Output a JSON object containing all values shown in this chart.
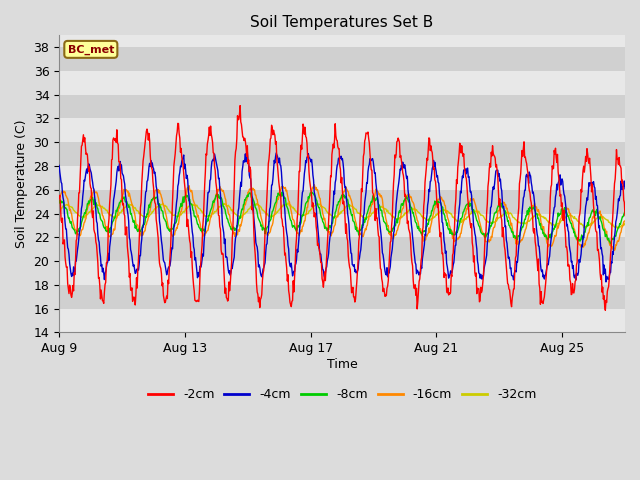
{
  "title": "Soil Temperatures Set B",
  "xlabel": "Time",
  "ylabel": "Soil Temperature (C)",
  "ylim": [
    14,
    39
  ],
  "yticks": [
    14,
    16,
    18,
    20,
    22,
    24,
    26,
    28,
    30,
    32,
    34,
    36,
    38
  ],
  "depths": [
    "-2cm",
    "-4cm",
    "-8cm",
    "-16cm",
    "-32cm"
  ],
  "colors": [
    "#ff0000",
    "#0000cc",
    "#00cc00",
    "#ff8800",
    "#cccc00"
  ],
  "legend_label": "BC_met",
  "bg_color": "#dcdcdc",
  "band_colors": [
    "#e8e8e8",
    "#d0d0d0"
  ],
  "grid_color": "#c8c8c8",
  "lw": 1.0,
  "xtick_positions": [
    0,
    4,
    8,
    12,
    16
  ],
  "xtick_labels": [
    "Aug 9",
    "Aug 13",
    "Aug 17",
    "Aug 21",
    "Aug 25"
  ],
  "xlim": [
    0,
    18
  ]
}
